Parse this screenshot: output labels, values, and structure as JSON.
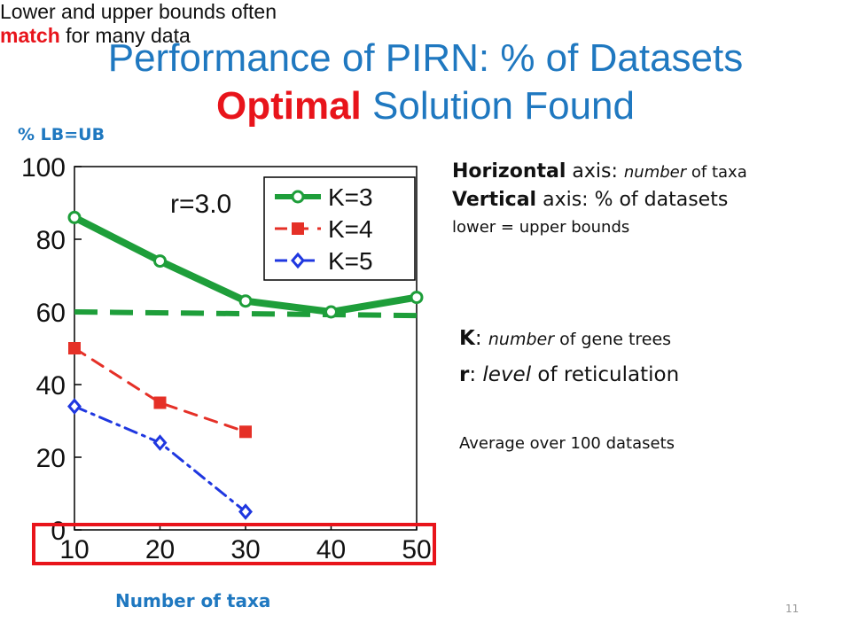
{
  "slide": {
    "title_line1": "Performance of PIRN: % of Datasets",
    "title_line2_highlight": "Optimal",
    "title_line2_rest": " Solution Found",
    "ylabel": "% LB=UB",
    "xlabel": "Number of taxa",
    "page_number": "11"
  },
  "notes": {
    "horizontal_label": "Horizontal",
    "horizontal_text1": " axis: ",
    "horizontal_italic": "number",
    "horizontal_text2": " of taxa",
    "vertical_label": "Vertical",
    "vertical_text": " axis: % of datasets",
    "vertical_sub": "lower = upper bounds",
    "k_label": "K",
    "k_colon": ": ",
    "k_italic": "number",
    "k_text": " of gene trees",
    "r_label": "r",
    "r_colon": ": ",
    "r_italic": "level",
    "r_text": " of reticulation",
    "average": "Average over 100 datasets",
    "match_text1": "Lower and upper bounds often ",
    "match_highlight": "match",
    "match_text2": " for many data"
  },
  "chart_data": {
    "type": "line",
    "annotation": "r=3.0",
    "x": [
      10,
      20,
      30,
      40,
      50
    ],
    "xticks": [
      "10",
      "20",
      "30",
      "40",
      "50"
    ],
    "yticks": [
      "0",
      "20",
      "40",
      "60",
      "80",
      "100"
    ],
    "ylim": [
      0,
      100
    ],
    "xlim": [
      10,
      50
    ],
    "legend_position": "top-right",
    "reference_line": {
      "y_start": 60,
      "y_end": 59,
      "style": "dashed",
      "color": "#1e9e3a"
    },
    "series": [
      {
        "name": "K=3",
        "x": [
          10,
          20,
          30,
          40,
          50
        ],
        "values": [
          86,
          74,
          63,
          60,
          64
        ],
        "color": "#1e9e3a",
        "marker": "circle",
        "dash": "solid"
      },
      {
        "name": "K=4",
        "x": [
          10,
          20,
          30
        ],
        "values": [
          50,
          35,
          27
        ],
        "color": "#e53027",
        "marker": "square",
        "dash": "dashed"
      },
      {
        "name": "K=5",
        "x": [
          10,
          20,
          30
        ],
        "values": [
          34,
          24,
          5
        ],
        "color": "#1f37e0",
        "marker": "diamond",
        "dash": "dashdot"
      }
    ],
    "colors": {
      "axes": "#000000",
      "highlight_box": "#e8141b"
    }
  }
}
